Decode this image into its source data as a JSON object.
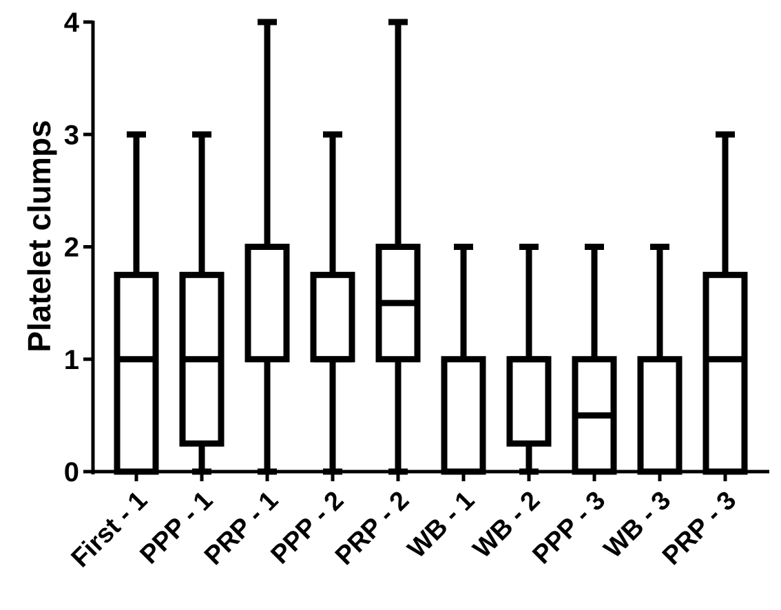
{
  "chart_data": {
    "type": "boxplot",
    "title": "",
    "xlabel": "",
    "ylabel": "Platelet clumps",
    "ylim": [
      0,
      4
    ],
    "yticks": [
      0,
      1,
      2,
      3,
      4
    ],
    "grid": false,
    "legend": "none",
    "colors": {
      "stroke": "#000000",
      "fill": "#ffffff"
    },
    "categories": [
      "First - 1",
      "PPP - 1",
      "PRP - 1",
      "PPP - 2",
      "PRP - 2",
      "WB - 1",
      "WB - 2",
      "PPP - 3",
      "WB - 3",
      "PRP - 3"
    ],
    "boxes": [
      {
        "min": 0,
        "q1": 0,
        "median": 1,
        "q3": 1.75,
        "max": 3
      },
      {
        "min": 0,
        "q1": 0.25,
        "median": 1,
        "q3": 1.75,
        "max": 3
      },
      {
        "min": 0,
        "q1": 1,
        "median": 2,
        "q3": 2,
        "max": 4
      },
      {
        "min": 0,
        "q1": 1,
        "median": 1,
        "q3": 1.75,
        "max": 3
      },
      {
        "min": 0,
        "q1": 1,
        "median": 1.5,
        "q3": 2,
        "max": 4
      },
      {
        "min": 0,
        "q1": 0,
        "median": 0,
        "q3": 1,
        "max": 2
      },
      {
        "min": 0,
        "q1": 0.25,
        "median": 1,
        "q3": 1,
        "max": 2
      },
      {
        "min": 0,
        "q1": 0,
        "median": 0.5,
        "q3": 1,
        "max": 2
      },
      {
        "min": 0,
        "q1": 0,
        "median": 0,
        "q3": 1,
        "max": 2
      },
      {
        "min": 0,
        "q1": 0,
        "median": 1,
        "q3": 1.75,
        "max": 3
      }
    ]
  }
}
